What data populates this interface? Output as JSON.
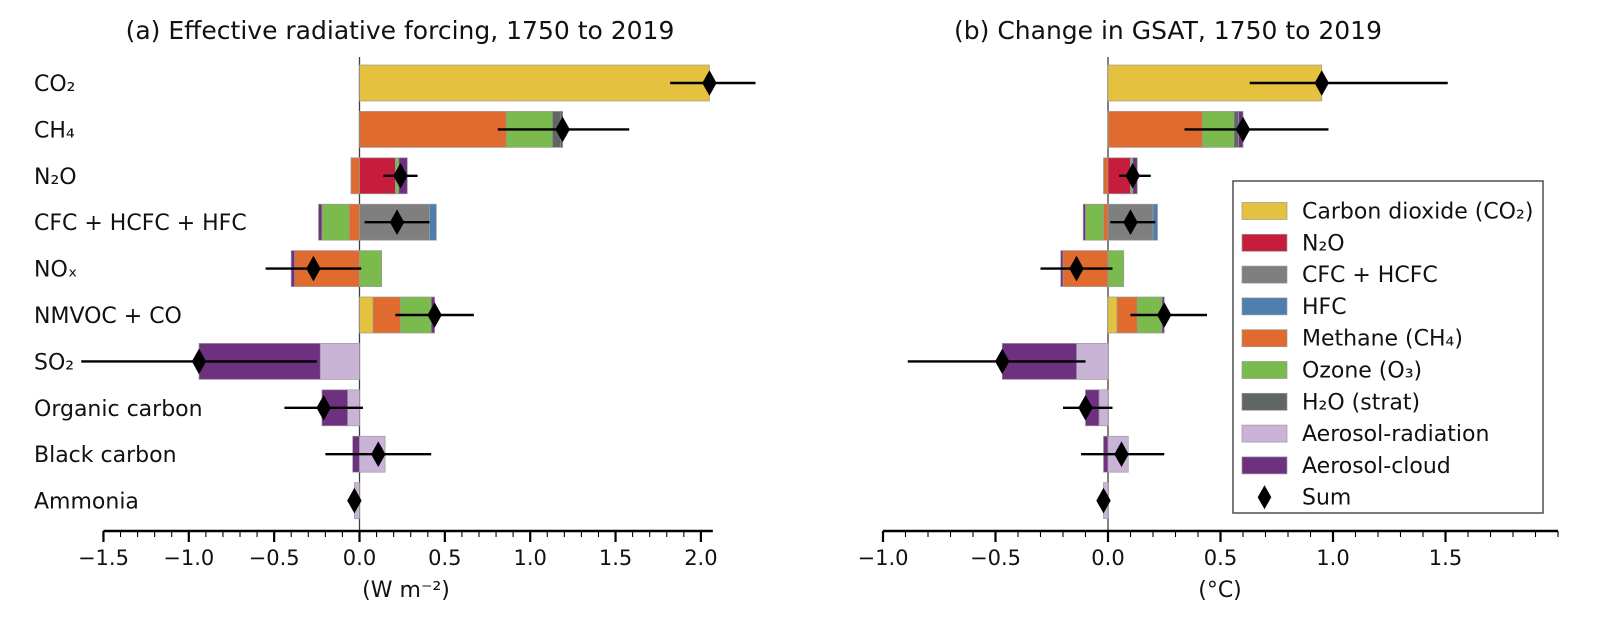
{
  "legend": {
    "position": "right side of panel b",
    "border_color": "#4d4d4d",
    "entries": [
      {
        "key": "carbon_dioxide",
        "label": "Carbon dioxide (CO₂)",
        "color": "#E4C13E",
        "marker": "swatch"
      },
      {
        "key": "n2o",
        "label": "N₂O",
        "color": "#C51D3B",
        "marker": "swatch"
      },
      {
        "key": "cfc_hcfc",
        "label": "CFC + HCFC",
        "color": "#7F7F7F",
        "marker": "swatch"
      },
      {
        "key": "hfc",
        "label": "HFC",
        "color": "#4D7EAE",
        "marker": "swatch"
      },
      {
        "key": "methane",
        "label": "Methane (CH₄)",
        "color": "#DF6B2E",
        "marker": "swatch"
      },
      {
        "key": "ozone",
        "label": "Ozone (O₃)",
        "color": "#7BBA4D",
        "marker": "swatch"
      },
      {
        "key": "h2o_strat",
        "label": "H₂O (strat)",
        "color": "#5F6663",
        "marker": "swatch"
      },
      {
        "key": "aerosol_radiation",
        "label": "Aerosol-radiation",
        "color": "#C9B4D7",
        "marker": "swatch"
      },
      {
        "key": "aerosol_cloud",
        "label": "Aerosol-cloud",
        "color": "#6D3180",
        "marker": "swatch"
      },
      {
        "key": "sum",
        "label": "Sum",
        "color": "#000000",
        "marker": "diamond"
      }
    ]
  },
  "chart_data": [
    {
      "type": "bar",
      "orientation": "horizontal-stacked",
      "title": "(a) Effective radiative forcing,  1750 to 2019",
      "xlabel": "(W m⁻²)",
      "unit": "W m⁻²",
      "xlim": [
        -1.5,
        2.07
      ],
      "xticks": [
        -1.5,
        -1.0,
        -0.5,
        0.0,
        0.5,
        1.0,
        1.5,
        2.0
      ],
      "xtick_labels": [
        "−1.5",
        "−1.0",
        "−0.5",
        "0.0",
        "0.5",
        "1.0",
        "1.5",
        "2.0"
      ],
      "minor_tick_step": 0.1,
      "grid": false,
      "show_row_labels": true,
      "rows": [
        {
          "label": "CO₂",
          "segments": [
            {
              "component": "carbon_dioxide",
              "value": 2.05
            }
          ],
          "sum": 2.05,
          "ci": [
            1.82,
            2.32
          ]
        },
        {
          "label": "CH₄",
          "segments": [
            {
              "component": "methane",
              "value": 0.86
            },
            {
              "component": "ozone",
              "value": 0.27
            },
            {
              "component": "h2o_strat",
              "value": 0.05
            },
            {
              "component": "aerosol_cloud",
              "value": 0.01
            }
          ],
          "sum": 1.19,
          "ci": [
            0.81,
            1.58
          ]
        },
        {
          "label": "N₂O",
          "segments": [
            {
              "component": "methane",
              "value": -0.05
            },
            {
              "component": "n2o",
              "value": 0.21
            },
            {
              "component": "ozone",
              "value": 0.02
            },
            {
              "component": "aerosol_cloud",
              "value": 0.05
            }
          ],
          "sum": 0.24,
          "ci": [
            0.14,
            0.34
          ]
        },
        {
          "label": "CFC + HCFC + HFC",
          "segments": [
            {
              "component": "methane",
              "value": -0.06
            },
            {
              "component": "ozone",
              "value": -0.16
            },
            {
              "component": "aerosol_cloud",
              "value": -0.02
            },
            {
              "component": "cfc_hcfc",
              "value": 0.41
            },
            {
              "component": "hfc",
              "value": 0.04
            }
          ],
          "sum": 0.22,
          "ci": [
            0.03,
            0.41
          ]
        },
        {
          "label": "NOₓ",
          "segments": [
            {
              "component": "methane",
              "value": -0.38
            },
            {
              "component": "aerosol_cloud",
              "value": -0.02
            },
            {
              "component": "ozone",
              "value": 0.13
            }
          ],
          "sum": -0.27,
          "ci": [
            -0.55,
            0.01
          ]
        },
        {
          "label": "NMVOC + CO",
          "segments": [
            {
              "component": "carbon_dioxide",
              "value": 0.08
            },
            {
              "component": "methane",
              "value": 0.16
            },
            {
              "component": "ozone",
              "value": 0.18
            },
            {
              "component": "aerosol_cloud",
              "value": 0.02
            }
          ],
          "sum": 0.44,
          "ci": [
            0.21,
            0.67
          ]
        },
        {
          "label": "SO₂",
          "segments": [
            {
              "component": "aerosol_radiation",
              "value": -0.23
            },
            {
              "component": "aerosol_cloud",
              "value": -0.71
            }
          ],
          "sum": -0.94,
          "ci": [
            -1.63,
            -0.25
          ]
        },
        {
          "label": "Organic carbon",
          "segments": [
            {
              "component": "aerosol_radiation",
              "value": -0.07
            },
            {
              "component": "aerosol_cloud",
              "value": -0.15
            }
          ],
          "sum": -0.21,
          "ci": [
            -0.44,
            0.02
          ]
        },
        {
          "label": "Black carbon",
          "segments": [
            {
              "component": "aerosol_cloud",
              "value": -0.04
            },
            {
              "component": "aerosol_radiation",
              "value": 0.15
            }
          ],
          "sum": 0.11,
          "ci": [
            -0.2,
            0.42
          ]
        },
        {
          "label": "Ammonia",
          "segments": [
            {
              "component": "aerosol_radiation",
              "value": -0.03
            }
          ],
          "sum": -0.03,
          "ci": [
            -0.05,
            -0.01
          ]
        }
      ]
    },
    {
      "type": "bar",
      "orientation": "horizontal-stacked",
      "title": "(b) Change in GSAT, 1750 to 2019",
      "xlabel": "(°C)",
      "unit": "°C",
      "xlim": [
        -1.0,
        2.0
      ],
      "xticks": [
        -1.0,
        -0.5,
        0.0,
        0.5,
        1.0,
        1.5
      ],
      "xtick_labels": [
        "−1.0",
        "−0.5",
        "0.0",
        "0.5",
        "1.0",
        "1.5"
      ],
      "minor_tick_step": 0.1,
      "grid": false,
      "show_row_labels": false,
      "rows": [
        {
          "label": "CO₂",
          "segments": [
            {
              "component": "carbon_dioxide",
              "value": 0.95
            }
          ],
          "sum": 0.95,
          "ci": [
            0.63,
            1.51
          ]
        },
        {
          "label": "CH₄",
          "segments": [
            {
              "component": "methane",
              "value": 0.42
            },
            {
              "component": "ozone",
              "value": 0.14
            },
            {
              "component": "h2o_strat",
              "value": 0.02
            },
            {
              "component": "aerosol_cloud",
              "value": 0.02
            }
          ],
          "sum": 0.6,
          "ci": [
            0.34,
            0.98
          ]
        },
        {
          "label": "N₂O",
          "segments": [
            {
              "component": "methane",
              "value": -0.02
            },
            {
              "component": "n2o",
              "value": 0.1
            },
            {
              "component": "ozone",
              "value": 0.01
            },
            {
              "component": "aerosol_cloud",
              "value": 0.02
            }
          ],
          "sum": 0.11,
          "ci": [
            0.05,
            0.19
          ]
        },
        {
          "label": "CFC + HCFC + HFC",
          "segments": [
            {
              "component": "methane",
              "value": -0.02
            },
            {
              "component": "ozone",
              "value": -0.08
            },
            {
              "component": "aerosol_cloud",
              "value": -0.01
            },
            {
              "component": "cfc_hcfc",
              "value": 0.2
            },
            {
              "component": "hfc",
              "value": 0.02
            }
          ],
          "sum": 0.1,
          "ci": [
            0.01,
            0.21
          ]
        },
        {
          "label": "NOₓ",
          "segments": [
            {
              "component": "methane",
              "value": -0.2
            },
            {
              "component": "aerosol_cloud",
              "value": -0.01
            },
            {
              "component": "ozone",
              "value": 0.07
            }
          ],
          "sum": -0.14,
          "ci": [
            -0.3,
            0.02
          ]
        },
        {
          "label": "NMVOC + CO",
          "segments": [
            {
              "component": "carbon_dioxide",
              "value": 0.04
            },
            {
              "component": "methane",
              "value": 0.09
            },
            {
              "component": "ozone",
              "value": 0.11
            },
            {
              "component": "aerosol_cloud",
              "value": 0.01
            }
          ],
          "sum": 0.25,
          "ci": [
            0.1,
            0.44
          ]
        },
        {
          "label": "SO₂",
          "segments": [
            {
              "component": "aerosol_radiation",
              "value": -0.14
            },
            {
              "component": "aerosol_cloud",
              "value": -0.33
            }
          ],
          "sum": -0.47,
          "ci": [
            -0.89,
            -0.1
          ]
        },
        {
          "label": "Organic carbon",
          "segments": [
            {
              "component": "aerosol_radiation",
              "value": -0.04
            },
            {
              "component": "aerosol_cloud",
              "value": -0.06
            }
          ],
          "sum": -0.1,
          "ci": [
            -0.2,
            0.02
          ]
        },
        {
          "label": "Black carbon",
          "segments": [
            {
              "component": "aerosol_cloud",
              "value": -0.02
            },
            {
              "component": "aerosol_radiation",
              "value": 0.09
            }
          ],
          "sum": 0.06,
          "ci": [
            -0.12,
            0.25
          ]
        },
        {
          "label": "Ammonia",
          "segments": [
            {
              "component": "aerosol_radiation",
              "value": -0.02
            }
          ],
          "sum": -0.02,
          "ci": [
            -0.03,
            0.0
          ]
        }
      ]
    }
  ]
}
